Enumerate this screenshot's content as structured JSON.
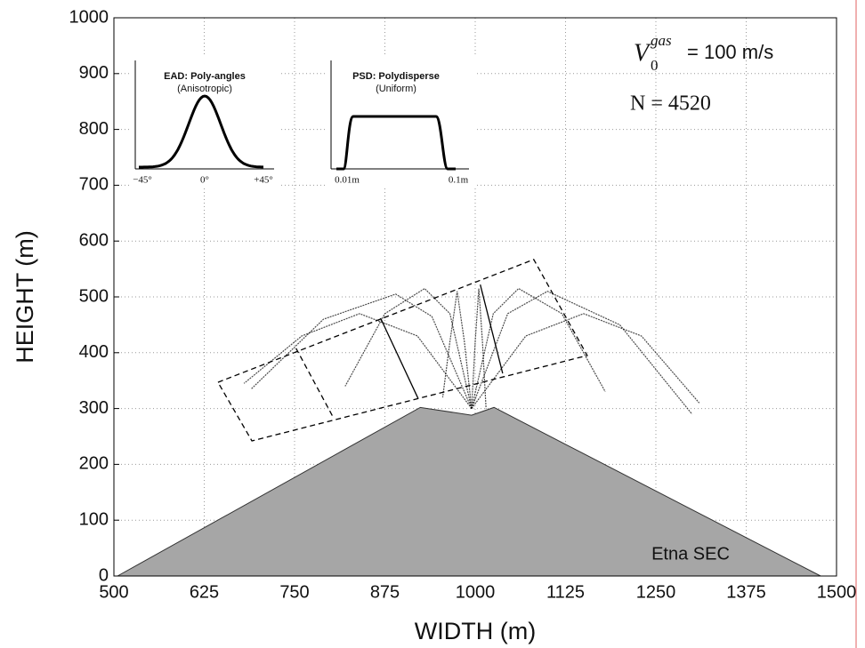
{
  "chart_data": {
    "type": "trajectory",
    "xlabel": "WIDTH (m)",
    "ylabel": "HEIGHT (m)",
    "xlim": [
      500,
      1500
    ],
    "ylim": [
      0,
      1000
    ],
    "xticks": [
      500,
      625,
      750,
      875,
      1000,
      1125,
      1250,
      1375,
      1500
    ],
    "yticks": [
      0,
      100,
      200,
      300,
      400,
      500,
      600,
      700,
      800,
      900,
      1000
    ],
    "grid": true,
    "terrain": {
      "name": "Etna SEC",
      "color": "#a6a6a6",
      "x": [
        505,
        924,
        995,
        1026,
        1478
      ],
      "y": [
        0,
        302,
        288,
        302,
        0
      ]
    },
    "trajectory_color": "#000000",
    "trajectories": [
      {
        "x": [
          995,
          1045,
          1100,
          1200,
          1300
        ],
        "y": [
          300,
          470,
          510,
          450,
          290
        ]
      },
      {
        "x": [
          995,
          940,
          890,
          790,
          690
        ],
        "y": [
          300,
          465,
          505,
          460,
          335
        ]
      },
      {
        "x": [
          995,
          1025,
          1060,
          1120,
          1180
        ],
        "y": [
          300,
          470,
          515,
          470,
          330
        ]
      },
      {
        "x": [
          995,
          965,
          930,
          875,
          820
        ],
        "y": [
          300,
          470,
          515,
          470,
          340
        ]
      },
      {
        "x": [
          995,
          1070,
          1150,
          1230,
          1310
        ],
        "y": [
          300,
          430,
          470,
          430,
          310
        ]
      },
      {
        "x": [
          995,
          920,
          840,
          760,
          680
        ],
        "y": [
          300,
          430,
          470,
          430,
          345
        ]
      },
      {
        "x": [
          995,
          1000,
          1005,
          1010,
          1015
        ],
        "y": [
          300,
          420,
          515,
          420,
          300
        ]
      },
      {
        "x": [
          995,
          985,
          975,
          965,
          955
        ],
        "y": [
          300,
          420,
          510,
          420,
          320
        ]
      }
    ],
    "boxes": [
      {
        "style": "dashed",
        "x": [
          644,
          1081,
          1155,
          691,
          644
        ],
        "y": [
          347,
          567,
          395,
          242,
          347
        ]
      },
      {
        "style": "solid",
        "x": [
          869,
          921
        ],
        "y": [
          462,
          318
        ]
      },
      {
        "style": "solid",
        "x": [
          1007,
          1038
        ],
        "y": [
          522,
          363
        ]
      },
      {
        "style": "dashed",
        "x": [
          752,
          804
        ],
        "y": [
          408,
          283
        ]
      }
    ],
    "annotations": {
      "velocity": {
        "symbol": "V",
        "subscript": "0",
        "superscript": "gas",
        "text": "= 100 m/s"
      },
      "count": "N = 4520"
    },
    "insets": [
      {
        "title": "EAD: Poly-angles",
        "subtitle": "(Anisotropic)",
        "ticks": [
          "−45°",
          "0°",
          "+45°"
        ]
      },
      {
        "title": "PSD: Polydisperse",
        "subtitle": "(Uniform)",
        "ticks": [
          "0.01m",
          "0.1m"
        ]
      }
    ]
  }
}
